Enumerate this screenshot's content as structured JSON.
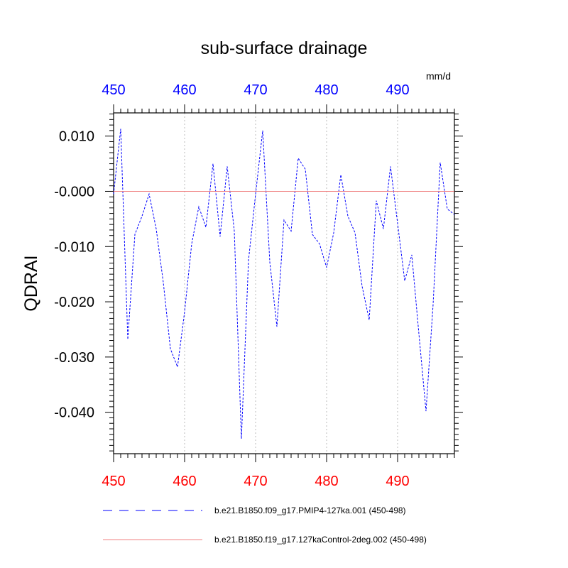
{
  "chart_data": {
    "type": "line",
    "title": "sub-surface drainage",
    "units": "mm/d",
    "ylabel": "QDRAI",
    "xlabel": "",
    "xlim": [
      450,
      498
    ],
    "ylim": [
      -0.0475,
      0.0142
    ],
    "x_ticks": [
      450,
      460,
      470,
      480,
      490
    ],
    "x_tick_labels": [
      "450",
      "460",
      "470",
      "480",
      "490"
    ],
    "y_ticks": [
      0.01,
      0.0,
      -0.01,
      -0.02,
      -0.03,
      -0.04
    ],
    "y_tick_labels": [
      "0.010",
      "-0.000",
      "-0.010",
      "-0.020",
      "-0.030",
      "-0.040"
    ],
    "top_axis_color": "#0000ff",
    "bottom_axis_color": "#ff0000",
    "grid": "vertical dotted at major x ticks",
    "legend_placement": "bottom",
    "series": [
      {
        "name": "b.e21.B1850.f09_g17.PMIP4-127ka.001 (450-498)",
        "color": "#0000ff",
        "style": "dashed",
        "x": [
          450,
          451,
          452,
          453,
          454,
          455,
          456,
          457,
          458,
          459,
          460,
          461,
          462,
          463,
          464,
          465,
          466,
          467,
          468,
          469,
          470,
          471,
          472,
          473,
          474,
          475,
          476,
          477,
          478,
          479,
          480,
          481,
          482,
          483,
          484,
          485,
          486,
          487,
          488,
          489,
          490,
          491,
          492,
          493,
          494,
          495,
          496,
          497,
          498
        ],
        "values": [
          -0.0005,
          0.0113,
          -0.0268,
          -0.0078,
          -0.0045,
          -0.0005,
          -0.0068,
          -0.0165,
          -0.0285,
          -0.0318,
          -0.0218,
          -0.0095,
          -0.0028,
          -0.0065,
          0.005,
          -0.0082,
          0.0045,
          -0.0072,
          -0.0448,
          -0.0125,
          -0.0005,
          0.011,
          -0.0128,
          -0.0245,
          -0.0052,
          -0.0072,
          0.006,
          0.004,
          -0.0078,
          -0.0095,
          -0.0138,
          -0.0075,
          0.003,
          -0.0045,
          -0.0075,
          -0.0172,
          -0.0233,
          -0.0017,
          -0.0068,
          0.0045,
          -0.0058,
          -0.0162,
          -0.0115,
          -0.0258,
          -0.0398,
          -0.0205,
          0.0052,
          -0.0032,
          -0.0042
        ]
      },
      {
        "name": "b.e21.B1850.f19_g17.127kaControl-2deg.002 (450-498)",
        "color": "#f08080",
        "style": "solid",
        "x": [
          450,
          498
        ],
        "values": [
          0.0,
          0.0
        ]
      }
    ]
  }
}
